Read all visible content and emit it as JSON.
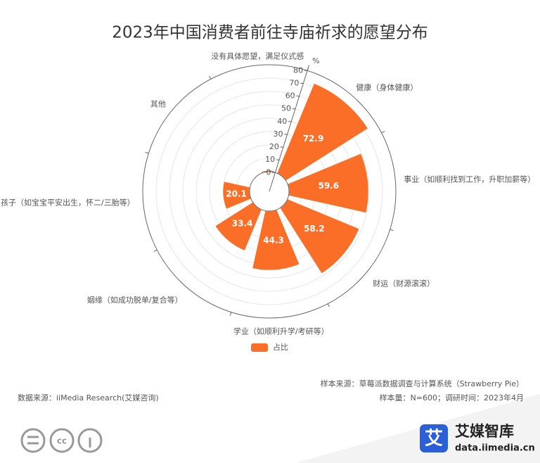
{
  "chart_data": {
    "type": "polar-bar",
    "title": "2023年中国消费者前往寺庙祈求的愿望分布",
    "categories": [
      "没有具体愿望，满足仪式感",
      "健康（身体健康）",
      "事业（如顺利找到工作，升职加薪等）",
      "财运（财源滚滚）",
      "学业（如顺利升学/考研等）",
      "姻缘（如成功脱单/复合等）",
      "孩子（如宝宝平安出生，怀二/三胎等）",
      "其他"
    ],
    "series": [
      {
        "name": "占比",
        "color": "#fa6e28",
        "values": [
          1.1,
          72.9,
          59.6,
          58.2,
          44.3,
          33.4,
          20.1,
          0.4
        ]
      }
    ],
    "ylim": [
      0,
      80
    ],
    "yticks": [
      0,
      10,
      20,
      30,
      40,
      50,
      60,
      70,
      80
    ],
    "y_unit": "%",
    "grid": true
  },
  "footer": {
    "sample_source": "样本来源：草莓派数据调查与计算系统（Strawberry Pie）",
    "sample_size": "样本量：N=600；调研时间：2023年4月",
    "data_source": "数据来源：iiMedia Research(艾媒咨询)",
    "brand": "艾媒智库",
    "brand_url": "data.iimedia.cn",
    "logo_char": "艾"
  }
}
